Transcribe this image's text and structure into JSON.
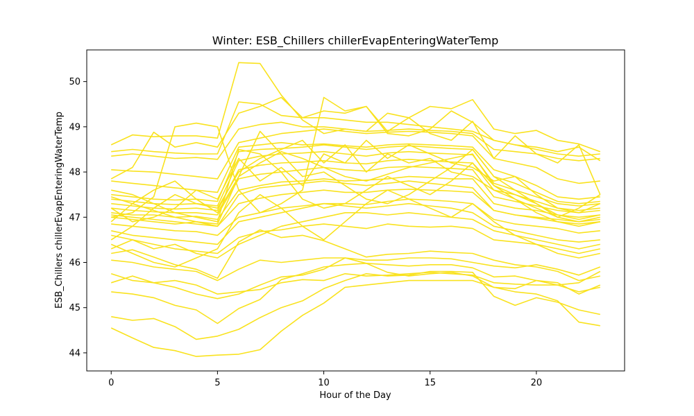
{
  "chart_data": {
    "type": "line",
    "title": "Winter: ESB_Chillers chillerEvapEnteringWaterTemp",
    "xlabel": "Hour of the Day",
    "ylabel": "ESB_Chillers chillerEvapEnteringWaterTemp",
    "xlim": [
      -1.15,
      24.15
    ],
    "ylim": [
      43.6,
      50.7
    ],
    "xticks": [
      0,
      5,
      10,
      15,
      20
    ],
    "yticks": [
      44,
      45,
      46,
      47,
      48,
      49,
      50
    ],
    "grid": false,
    "line_color": "#f9e21e",
    "x": [
      0,
      1,
      2,
      3,
      4,
      5,
      6,
      7,
      8,
      9,
      10,
      11,
      12,
      13,
      14,
      15,
      16,
      17,
      18,
      19,
      20,
      21,
      22,
      23
    ],
    "series": [
      {
        "values": [
          44.55,
          44.33,
          44.12,
          44.05,
          43.92,
          43.95,
          43.97,
          44.07,
          44.48,
          44.83,
          45.1,
          45.45,
          45.5,
          45.55,
          45.6,
          45.6,
          45.6,
          45.6,
          45.45,
          45.35,
          45.3,
          45.15,
          44.68,
          44.6
        ]
      },
      {
        "values": [
          44.8,
          44.72,
          44.76,
          44.58,
          44.3,
          44.37,
          44.52,
          44.78,
          45.0,
          45.15,
          45.42,
          45.6,
          45.75,
          45.7,
          45.72,
          45.8,
          45.8,
          45.78,
          45.25,
          45.05,
          45.22,
          45.12,
          44.95,
          44.85
        ]
      },
      {
        "values": [
          45.35,
          45.3,
          45.22,
          45.05,
          44.95,
          44.65,
          44.98,
          45.18,
          45.62,
          45.75,
          45.9,
          45.95,
          45.98,
          45.95,
          45.92,
          45.95,
          45.95,
          45.88,
          45.68,
          45.7,
          45.6,
          45.55,
          45.3,
          45.5
        ]
      },
      {
        "values": [
          45.75,
          45.6,
          45.55,
          45.6,
          45.5,
          45.3,
          45.35,
          45.4,
          45.55,
          45.62,
          45.6,
          45.75,
          45.7,
          45.72,
          45.75,
          45.78,
          45.75,
          45.72,
          45.55,
          45.52,
          45.5,
          45.5,
          45.55,
          45.8
        ]
      },
      {
        "values": [
          46.05,
          46.0,
          45.9,
          45.85,
          45.8,
          45.6,
          45.85,
          46.05,
          46.0,
          46.05,
          46.1,
          46.1,
          46.05,
          46.05,
          46.1,
          46.1,
          46.08,
          46.0,
          45.92,
          45.88,
          45.95,
          45.85,
          45.72,
          45.9
        ]
      },
      {
        "values": [
          45.55,
          45.7,
          45.55,
          45.45,
          45.3,
          45.2,
          45.3,
          45.5,
          45.68,
          45.72,
          45.85,
          46.1,
          45.98,
          45.78,
          45.7,
          45.75,
          45.78,
          45.7,
          45.45,
          45.42,
          45.6,
          45.5,
          45.35,
          45.45
        ]
      },
      {
        "values": [
          46.2,
          46.28,
          46.12,
          45.95,
          45.85,
          45.65,
          46.45,
          46.72,
          46.55,
          46.6,
          46.48,
          46.3,
          46.12,
          46.18,
          46.2,
          46.25,
          46.22,
          46.2,
          46.05,
          45.95,
          45.9,
          45.8,
          45.6,
          45.7
        ]
      },
      {
        "values": [
          46.6,
          46.5,
          46.4,
          46.3,
          46.25,
          46.2,
          46.55,
          46.68,
          46.72,
          46.8,
          46.85,
          46.8,
          46.75,
          46.85,
          46.8,
          46.78,
          46.8,
          46.75,
          46.5,
          46.45,
          46.4,
          46.3,
          46.2,
          46.3
        ]
      },
      {
        "values": [
          46.85,
          46.8,
          46.75,
          46.7,
          46.68,
          46.6,
          47.0,
          47.1,
          47.2,
          47.25,
          47.3,
          47.3,
          47.28,
          47.35,
          47.4,
          47.38,
          47.35,
          47.3,
          46.95,
          46.85,
          46.8,
          46.75,
          46.65,
          46.7
        ]
      },
      {
        "values": [
          47.0,
          46.95,
          46.9,
          46.85,
          46.9,
          46.8,
          47.3,
          47.42,
          47.5,
          47.55,
          47.6,
          47.55,
          47.55,
          47.6,
          47.62,
          47.6,
          47.58,
          47.55,
          47.15,
          47.05,
          47.0,
          46.95,
          46.9,
          46.95
        ]
      },
      {
        "values": [
          47.1,
          47.05,
          47.05,
          47.0,
          47.02,
          46.95,
          47.6,
          47.7,
          47.78,
          47.8,
          47.85,
          47.8,
          47.82,
          47.85,
          47.9,
          47.88,
          47.85,
          47.85,
          47.3,
          47.2,
          47.15,
          47.05,
          47.0,
          47.05
        ]
      },
      {
        "values": [
          47.2,
          47.15,
          47.12,
          47.1,
          47.1,
          47.05,
          47.85,
          47.95,
          48.0,
          48.05,
          48.1,
          48.05,
          48.02,
          48.1,
          48.12,
          48.1,
          48.08,
          48.05,
          47.45,
          47.35,
          47.25,
          47.15,
          47.1,
          47.15
        ]
      },
      {
        "values": [
          47.3,
          47.25,
          47.2,
          47.18,
          47.2,
          47.15,
          48.05,
          48.15,
          48.2,
          48.22,
          48.25,
          48.2,
          48.18,
          48.25,
          48.28,
          48.25,
          48.22,
          48.2,
          47.6,
          47.5,
          47.35,
          47.2,
          47.15,
          47.2
        ]
      },
      {
        "values": [
          47.4,
          47.35,
          47.3,
          47.28,
          47.3,
          47.25,
          48.25,
          48.35,
          48.4,
          48.42,
          48.45,
          48.4,
          48.35,
          48.42,
          48.45,
          48.42,
          48.4,
          48.38,
          47.75,
          47.6,
          47.45,
          47.3,
          47.25,
          47.3
        ]
      },
      {
        "values": [
          47.5,
          47.45,
          47.4,
          47.38,
          47.4,
          47.35,
          48.45,
          48.5,
          48.52,
          48.55,
          48.6,
          48.55,
          48.5,
          48.55,
          48.58,
          48.55,
          48.52,
          48.5,
          47.9,
          47.75,
          47.55,
          47.35,
          47.3,
          47.35
        ]
      },
      {
        "values": [
          47.8,
          47.75,
          47.7,
          47.65,
          47.6,
          47.55,
          48.55,
          48.6,
          48.65,
          48.6,
          48.62,
          48.58,
          48.55,
          48.6,
          48.62,
          48.6,
          48.58,
          48.55,
          48.05,
          47.9,
          47.7,
          47.45,
          47.4,
          47.45
        ]
      },
      {
        "values": [
          48.05,
          48.02,
          48.0,
          47.95,
          47.9,
          47.85,
          48.65,
          48.75,
          48.85,
          48.9,
          48.95,
          48.9,
          48.85,
          48.88,
          48.9,
          48.88,
          48.85,
          48.8,
          48.3,
          48.2,
          48.1,
          47.85,
          47.75,
          47.8
        ]
      },
      {
        "values": [
          48.35,
          48.4,
          48.35,
          48.3,
          48.32,
          48.28,
          48.95,
          49.05,
          49.1,
          49.0,
          49.0,
          48.95,
          48.9,
          48.92,
          48.95,
          48.92,
          48.9,
          48.85,
          48.5,
          48.45,
          48.4,
          48.3,
          48.25,
          48.3
        ]
      },
      {
        "values": [
          48.45,
          48.5,
          48.45,
          48.42,
          48.4,
          48.4,
          49.55,
          49.5,
          49.25,
          49.2,
          49.2,
          49.15,
          49.1,
          49.1,
          49.05,
          49.0,
          48.95,
          48.9,
          48.7,
          48.6,
          48.5,
          48.4,
          48.35,
          48.4
        ]
      },
      {
        "values": [
          48.6,
          48.82,
          48.78,
          48.8,
          48.8,
          48.75,
          50.42,
          50.4,
          49.7,
          49.15,
          48.85,
          48.95,
          48.9,
          49.3,
          49.2,
          49.45,
          49.4,
          49.6,
          48.95,
          48.85,
          48.92,
          48.7,
          48.62,
          48.45
        ]
      },
      {
        "values": [
          47.85,
          48.1,
          48.88,
          48.55,
          48.65,
          48.55,
          49.3,
          49.45,
          49.65,
          49.2,
          49.35,
          49.3,
          49.45,
          48.85,
          48.8,
          48.95,
          49.35,
          49.1,
          48.7,
          48.6,
          48.55,
          48.45,
          48.55,
          48.25
        ]
      },
      {
        "values": [
          47.0,
          47.1,
          47.45,
          49.0,
          49.08,
          49.0,
          47.6,
          47.1,
          47.3,
          47.6,
          49.65,
          49.35,
          49.45,
          48.9,
          49.2,
          48.85,
          48.7,
          49.12,
          48.3,
          48.8,
          48.4,
          48.2,
          48.6,
          47.5
        ]
      },
      {
        "values": [
          46.5,
          46.8,
          47.2,
          47.5,
          47.3,
          47.2,
          48.0,
          48.3,
          48.5,
          48.7,
          48.2,
          48.6,
          48.0,
          48.4,
          48.2,
          48.3,
          48.0,
          47.9,
          47.6,
          47.4,
          47.2,
          47.0,
          46.9,
          47.0
        ]
      },
      {
        "values": [
          47.2,
          46.9,
          47.0,
          47.2,
          47.6,
          47.4,
          48.3,
          47.8,
          48.1,
          47.7,
          48.4,
          48.2,
          48.7,
          48.3,
          48.6,
          48.4,
          48.2,
          48.1,
          47.8,
          47.9,
          47.5,
          47.2,
          47.1,
          47.3
        ]
      },
      {
        "values": [
          46.3,
          46.5,
          46.3,
          46.4,
          46.2,
          46.1,
          46.4,
          46.6,
          46.8,
          46.9,
          47.0,
          47.1,
          47.1,
          47.05,
          47.1,
          47.05,
          47.0,
          46.95,
          46.7,
          46.6,
          46.5,
          46.4,
          46.3,
          46.4
        ]
      },
      {
        "values": [
          47.6,
          47.5,
          47.3,
          47.1,
          47.0,
          46.9,
          48.5,
          48.4,
          48.0,
          47.4,
          47.2,
          47.3,
          47.6,
          47.9,
          47.7,
          47.5,
          47.8,
          48.2,
          47.7,
          47.4,
          47.1,
          46.9,
          46.8,
          46.9
        ]
      },
      {
        "values": [
          46.9,
          47.3,
          47.6,
          47.8,
          47.4,
          47.1,
          47.9,
          48.9,
          48.4,
          47.9,
          48.0,
          47.7,
          47.4,
          47.3,
          47.5,
          47.8,
          48.1,
          48.5,
          47.9,
          47.6,
          47.3,
          47.0,
          47.2,
          47.5
        ]
      },
      {
        "values": [
          46.4,
          46.2,
          46.0,
          45.9,
          46.1,
          46.3,
          47.1,
          47.5,
          47.2,
          46.8,
          46.5,
          46.9,
          47.3,
          47.6,
          47.4,
          47.2,
          47.0,
          47.3,
          46.9,
          46.6,
          46.4,
          46.2,
          46.1,
          46.2
        ]
      },
      {
        "values": [
          47.45,
          47.3,
          47.15,
          47.0,
          46.9,
          46.85,
          47.9,
          48.2,
          48.45,
          48.3,
          48.1,
          47.9,
          47.8,
          47.95,
          48.1,
          48.2,
          48.3,
          48.4,
          47.7,
          47.5,
          47.3,
          47.05,
          46.95,
          47.05
        ]
      },
      {
        "values": [
          46.7,
          46.6,
          46.55,
          46.5,
          46.45,
          46.4,
          46.9,
          47.0,
          47.1,
          47.2,
          47.3,
          47.25,
          47.2,
          47.25,
          47.3,
          47.25,
          47.2,
          47.1,
          46.8,
          46.7,
          46.6,
          46.5,
          46.45,
          46.5
        ]
      },
      {
        "values": [
          47.05,
          47.0,
          46.95,
          46.9,
          46.85,
          46.8,
          47.5,
          47.65,
          47.7,
          47.75,
          47.8,
          47.75,
          47.7,
          47.75,
          47.8,
          47.75,
          47.7,
          47.65,
          47.15,
          47.05,
          46.98,
          46.9,
          46.85,
          46.9
        ]
      }
    ]
  }
}
